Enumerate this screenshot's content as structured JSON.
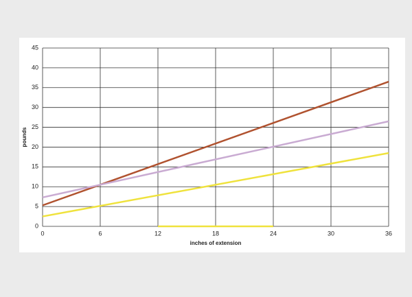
{
  "chart_data": {
    "type": "line",
    "xlabel": "inches of extension",
    "ylabel": "pounds",
    "xlim": [
      0,
      36
    ],
    "xticks": [
      0,
      6,
      12,
      18,
      24,
      30,
      36
    ],
    "ylim": [
      0,
      45
    ],
    "yticks": [
      0,
      5,
      10,
      15,
      20,
      25,
      30,
      35,
      40,
      45
    ],
    "grid": true,
    "series": [
      {
        "color": "#b0522f",
        "x": [
          0,
          36
        ],
        "values": [
          5.3,
          36.5
        ]
      },
      {
        "color": "#c9abd2",
        "x": [
          0,
          36
        ],
        "values": [
          7.3,
          26.5
        ]
      },
      {
        "color": "#efe23c",
        "x": [
          0,
          36
        ],
        "values": [
          2.5,
          18.5
        ]
      },
      {
        "color": "#efe23c",
        "x": [
          12,
          24
        ],
        "values": [
          0,
          0
        ]
      }
    ]
  }
}
